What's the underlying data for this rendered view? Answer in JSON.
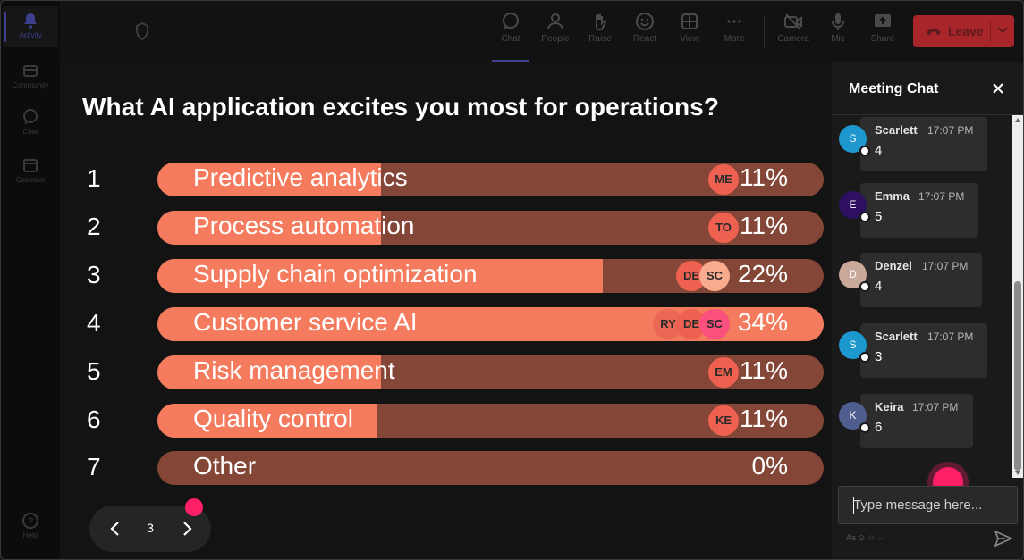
{
  "rail": {
    "items": [
      {
        "label": "Activity",
        "icon": "bell-icon",
        "active": true
      },
      {
        "label": "Community",
        "icon": "community-icon",
        "active": false
      },
      {
        "label": "Chat",
        "icon": "chat-icon",
        "active": false
      },
      {
        "label": "Calendar",
        "icon": "calendar-icon",
        "active": false
      }
    ],
    "help_label": "Help"
  },
  "toolbar": {
    "chat": "Chat",
    "people": "People",
    "raise": "Raise",
    "react": "React",
    "view": "View",
    "more": "More",
    "camera": "Camera",
    "mic": "Mic",
    "share": "Share",
    "leave": "Leave"
  },
  "poll": {
    "question": "What AI application excites you most for operations?",
    "options": [
      {
        "num": "1",
        "label": "Predictive analytics",
        "pct": "11%",
        "fill": 0.335,
        "voters": [
          "ME"
        ]
      },
      {
        "num": "2",
        "label": "Process automation",
        "pct": "11%",
        "fill": 0.335,
        "voters": [
          "TO"
        ]
      },
      {
        "num": "3",
        "label": "Supply chain optimization",
        "pct": "22%",
        "fill": 0.668,
        "voters": [
          "DE",
          "SC"
        ]
      },
      {
        "num": "4",
        "label": "Customer service AI",
        "pct": "34%",
        "fill": 1.0,
        "voters": [
          "RY",
          "DE",
          "SC"
        ]
      },
      {
        "num": "5",
        "label": "Risk management",
        "pct": "11%",
        "fill": 0.335,
        "voters": [
          "EM"
        ]
      },
      {
        "num": "6",
        "label": "Quality control",
        "pct": "11%",
        "fill": 0.33,
        "voters": [
          "KE"
        ]
      },
      {
        "num": "7",
        "label": "Other",
        "pct": "0%",
        "fill": 0,
        "voters": []
      }
    ],
    "page": "3"
  },
  "colors": {
    "bar_fill": "#f47b5d",
    "bar_track": "#844636",
    "leave_button": "#a8262a",
    "notification_dot": "#ff1f66",
    "avatar_ME": "#ee6150",
    "avatar_TO": "#ee6150",
    "avatar_DE": "#ee6150",
    "avatar_SC": "#f9ab8d",
    "avatar_RY": "#ea6854",
    "avatar_EM": "#ee6150",
    "avatar_KE": "#ee6150",
    "avatar_SC_row4": "#fb4f7d"
  },
  "chat": {
    "title": "Meeting Chat",
    "messages": [
      {
        "initial": "S",
        "name": "Scarlett",
        "time": "17:07 PM",
        "text": "4",
        "avatar_color": "#1c98cf"
      },
      {
        "initial": "E",
        "name": "Emma",
        "time": "17:07 PM",
        "text": "5",
        "avatar_color": "#2d1160"
      },
      {
        "initial": "D",
        "name": "Denzel",
        "time": "17:07 PM",
        "text": "4",
        "avatar_color": "#c9a99a"
      },
      {
        "initial": "S",
        "name": "Scarlett",
        "time": "17:07 PM",
        "text": "3",
        "avatar_color": "#1c98cf"
      },
      {
        "initial": "K",
        "name": "Keira",
        "time": "17:07 PM",
        "text": "6",
        "avatar_color": "#4f5d8f"
      }
    ],
    "input_placeholder": "Type message here...",
    "format_hint": "Aa ⊙ ☺ ⋯"
  }
}
